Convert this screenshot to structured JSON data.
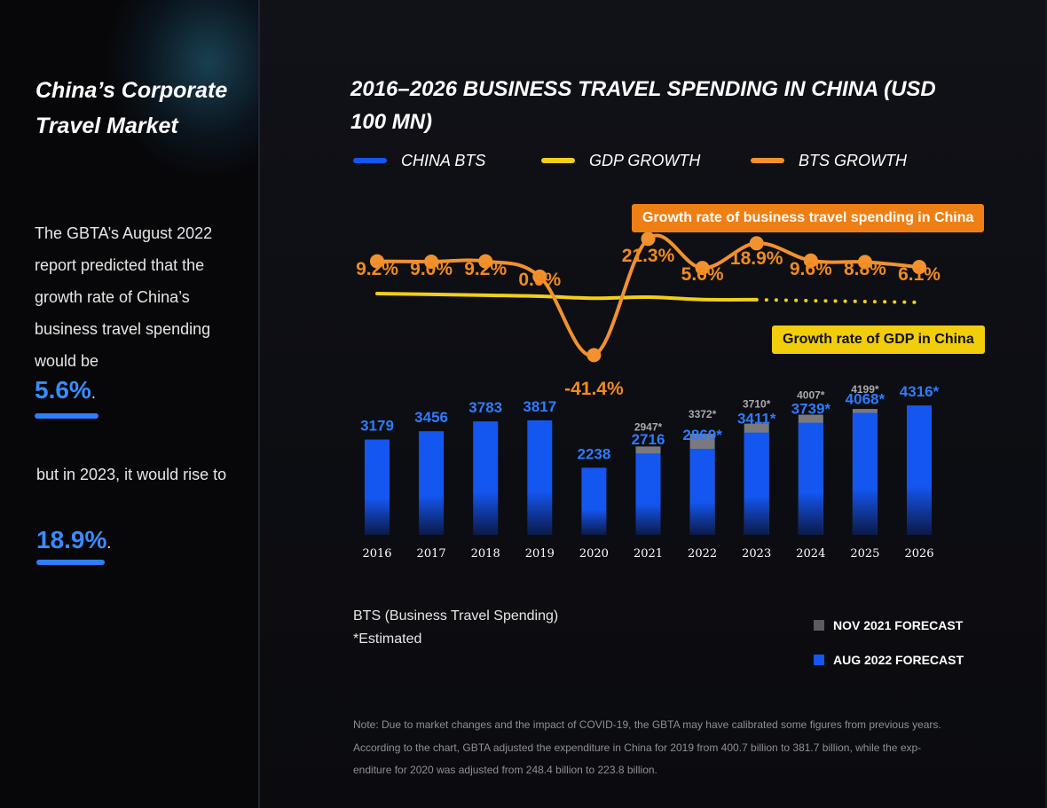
{
  "sidebar": {
    "title": "China’s Corporate Travel Market",
    "text1": "The GBTA’s August 2022 report predicted that the growth rate of China’s business travel spending would be",
    "pct1": "5.6%",
    "text2": "but in 2023, it would rise to",
    "pct2": "18.9%",
    "period": "."
  },
  "legend": {
    "bts": "CHINA BTS",
    "gdp": "GDP GROWTH",
    "bts_growth": "BTS GROWTH"
  },
  "callouts": {
    "bts": "Growth rate of business travel spending in China",
    "gdp": "Growth rate of GDP in China"
  },
  "notes": {
    "bts_def": "BTS (Business Travel Spending)",
    "estimated": "*Estimated",
    "footnote": "Note: Due to market changes and the impact of COVID-19, the GBTA may have calibrated some figures from previous years. According to the chart, GBTA adjusted the expenditure in China for 2019 from 400.7 billion to 381.7 billion, while the exp-enditure for 2020 was adjusted from 248.4 billion to 223.8 billion."
  },
  "forecast_legend": {
    "nov": "NOV 2021 FORECAST",
    "aug": "AUG 2022 FORECAST"
  },
  "colors": {
    "bts_bar": "#1456f0",
    "nov_forecast": "#7a7a7e",
    "bts_growth_line": "#f1922f",
    "gdp_line": "#f1cf1a",
    "bar_label": "#2f7bff",
    "growth_label": "#f08b22"
  },
  "chart_data": {
    "type": "bar",
    "title": "2016–2026 BUSINESS TRAVEL SPENDING IN CHINA (USD 100 MN)",
    "categories": [
      "2016",
      "2017",
      "2018",
      "2019",
      "2020",
      "2021",
      "2022",
      "2023",
      "2024",
      "2025",
      "2026"
    ],
    "series": [
      {
        "name": "AUG 2022 FORECAST",
        "values": [
          3179,
          3456,
          3783,
          3817,
          2238,
          2716,
          2869,
          3411,
          3739,
          4068,
          4316
        ],
        "labels": [
          "3179",
          "3456",
          "3783",
          "3817",
          "2238",
          "2716",
          "2869*",
          "3411*",
          "3739*",
          "4068*",
          "4316*"
        ]
      },
      {
        "name": "NOV 2021 FORECAST",
        "values": [
          null,
          null,
          null,
          null,
          null,
          2947,
          3372,
          3710,
          4007,
          4199,
          null
        ],
        "labels": [
          "",
          "",
          "",
          "",
          "",
          "2947*",
          "3372*",
          "3710*",
          "4007*",
          "4199*",
          ""
        ]
      }
    ],
    "growth_series": [
      {
        "name": "BTS GROWTH",
        "values": [
          9.2,
          9.0,
          9.2,
          0.9,
          -41.4,
          21.3,
          5.6,
          18.9,
          9.6,
          8.8,
          6.1
        ],
        "labels": [
          "9.2%",
          "9.0%",
          "9.2%",
          "0.9%",
          "-41.4%",
          "21.3%",
          "5.6%",
          "18.9%",
          "9.6%",
          "8.8%",
          "6.1%"
        ]
      },
      {
        "name": "GDP GROWTH",
        "values": [
          6.8,
          6.9,
          6.7,
          6.0,
          2.2,
          8.1,
          3.0,
          5.2,
          4.6,
          4.4,
          4.3
        ]
      }
    ]
  }
}
